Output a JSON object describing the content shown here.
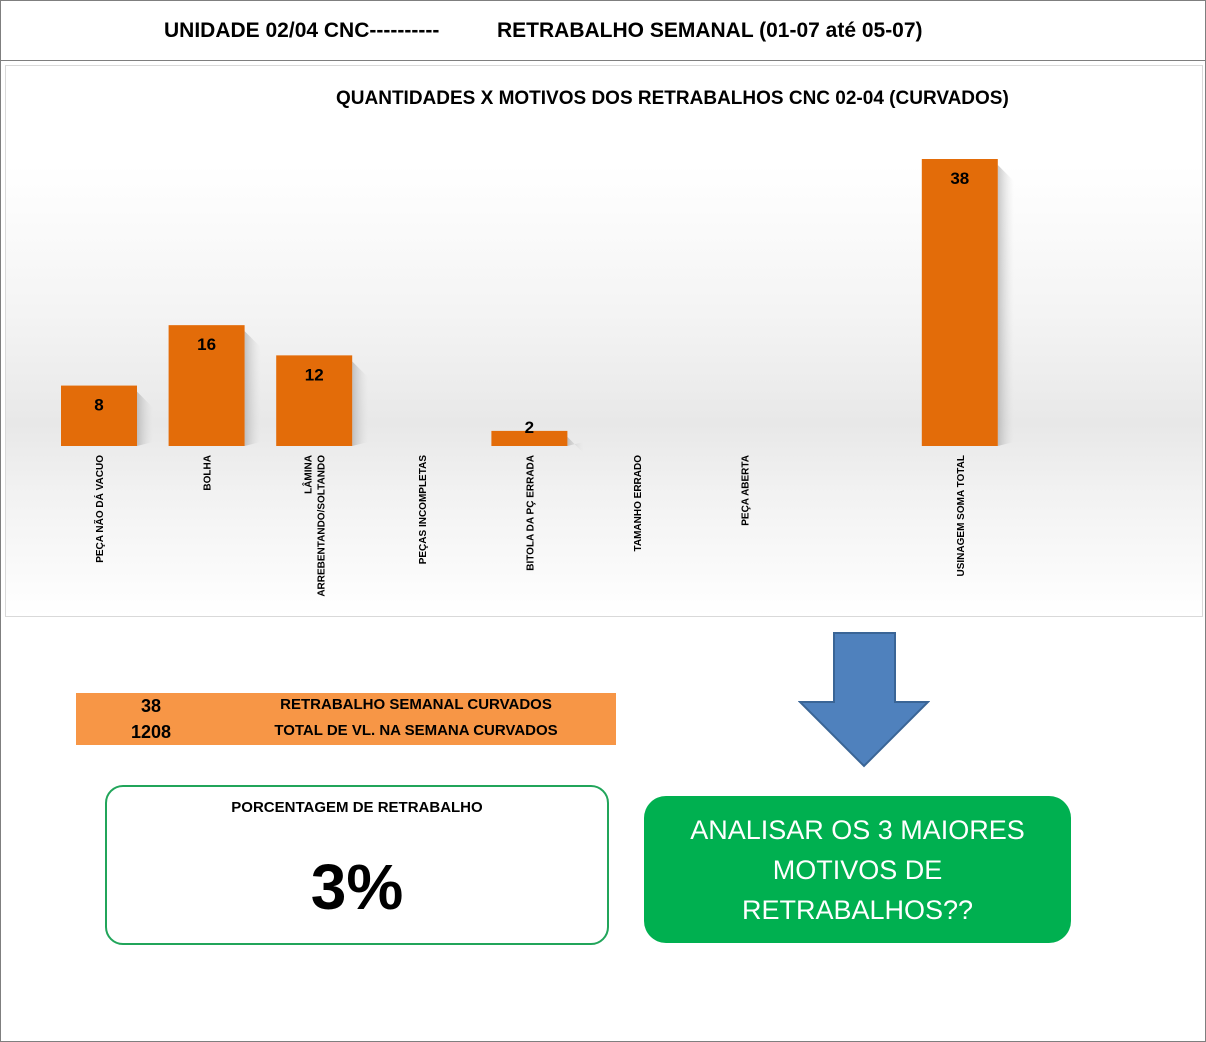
{
  "header": {
    "left": "UNIDADE 02/04 CNC----------",
    "right": "RETRABALHO SEMANAL (01-07 até 05-07)"
  },
  "chart_data": {
    "type": "bar",
    "title": "QUANTIDADES X MOTIVOS DOS RETRABALHOS CNC 02-04 (CURVADOS)",
    "categories": [
      "PEÇA NÃO DÁ VACUO",
      "BOLHA",
      "LÂMINA ARREBENTANDO/SOLTANDO",
      "PEÇAS INCOMPLETAS",
      "BITOLA DA PÇ ERRADA",
      "TAMANHO ERRADO",
      "PEÇA ABERTA",
      "",
      "USINAGEM SOMA TOTAL"
    ],
    "values": [
      8,
      16,
      12,
      0,
      2,
      0,
      0,
      0,
      38
    ],
    "data_labels": [
      "8",
      "16",
      "12",
      "",
      "2",
      "",
      "",
      "",
      "38"
    ],
    "bar_color": "#e36c09",
    "ylim": [
      0,
      38
    ],
    "grid": false,
    "legend": "none"
  },
  "summary": {
    "row1_value": "38",
    "row1_label": "RETRABALHO SEMANAL CURVADOS",
    "row2_value": "1208",
    "row2_label": "TOTAL DE VL. NA SEMANA CURVADOS",
    "color": "#f79646"
  },
  "percentage": {
    "title": "PORCENTAGEM DE RETRABALHO",
    "value": "3%"
  },
  "callout": {
    "text": "ANALISAR OS 3 MAIORES MOTIVOS DE RETRABALHOS??",
    "arrow_icon": "down-arrow-icon",
    "arrow_color": "#4f81bd",
    "box_color": "#00b050"
  }
}
